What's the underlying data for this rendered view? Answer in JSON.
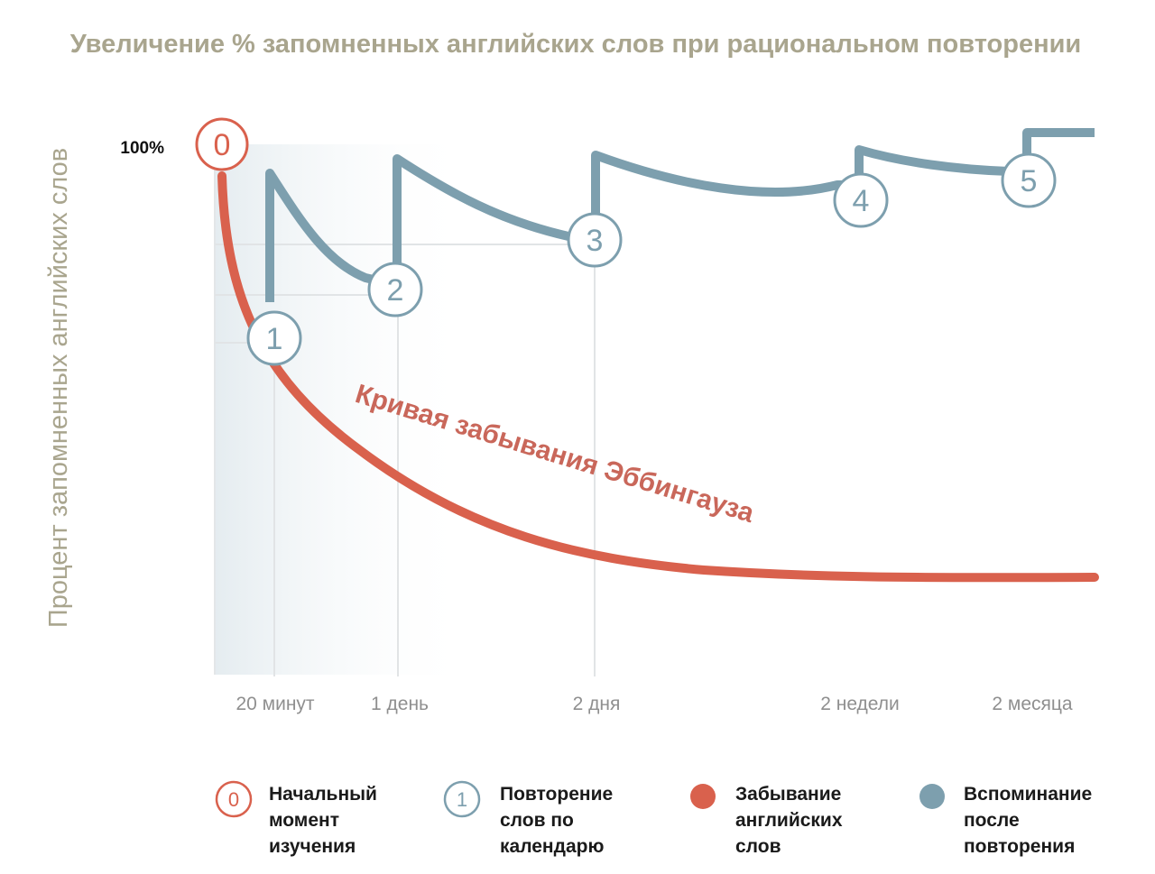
{
  "chart_data": {
    "type": "line",
    "title": "Увеличение % запомненных английских слов при рациональном повторении",
    "ylabel": "Процент запомненных английских слов",
    "y_tick_label": "100%",
    "x_tick_labels": [
      "20 минут",
      "1 день",
      "2 дня",
      "2 недели",
      "2 месяца"
    ],
    "curve_annotation": "Кривая забывания Эббингауза",
    "series": [
      {
        "role": "forgetting",
        "color": "#d9614d",
        "points": [
          [
            0,
            100
          ],
          [
            0.3,
            62
          ],
          [
            0.6,
            48
          ],
          [
            1,
            38
          ],
          [
            1.5,
            30
          ],
          [
            2,
            24
          ],
          [
            2.5,
            21
          ],
          [
            3,
            20
          ],
          [
            3.5,
            19.5
          ],
          [
            4.2,
            19.5
          ]
        ]
      },
      {
        "role": "recall",
        "color": "#7d9fae",
        "segments": [
          {
            "start": [
              0.33,
              70
            ],
            "rise_to": [
              0.33,
              95
            ],
            "decay_to": [
              0.85,
              76
            ]
          },
          {
            "start": [
              0.85,
              76
            ],
            "rise_to": [
              0.85,
              97
            ],
            "decay_to": [
              1.6,
              84
            ]
          },
          {
            "start": [
              1.6,
              84
            ],
            "rise_to": [
              1.6,
              98
            ],
            "decay_to": [
              2.95,
              92
            ]
          },
          {
            "start": [
              2.95,
              92
            ],
            "rise_to": [
              2.95,
              99
            ],
            "decay_to": [
              3.5,
              95
            ]
          },
          {
            "start": [
              3.5,
              95
            ],
            "rise_to": [
              3.5,
              100
            ],
            "decay_to": [
              3.8,
              100
            ]
          }
        ]
      }
    ],
    "markers": [
      {
        "label": "0",
        "kind": "start",
        "x": 0,
        "y": 100
      },
      {
        "label": "1",
        "kind": "repetition",
        "x": 0.27,
        "y": 65
      },
      {
        "label": "2",
        "kind": "repetition",
        "x": 0.84,
        "y": 74
      },
      {
        "label": "3",
        "kind": "repetition",
        "x": 1.7,
        "y": 83
      },
      {
        "label": "4",
        "kind": "repetition",
        "x": 2.85,
        "y": 91
      },
      {
        "label": "5",
        "kind": "repetition",
        "x": 3.6,
        "y": 95
      }
    ],
    "grid": true
  },
  "legend": {
    "items": [
      {
        "symbol": "0",
        "lines": [
          "Начальный",
          "момент",
          "изучения"
        ],
        "color": "#d9614d",
        "style": "outline"
      },
      {
        "symbol": "1",
        "lines": [
          "Повторение",
          "слов по",
          "календарю"
        ],
        "color": "#7d9fae",
        "style": "outline"
      },
      {
        "symbol": "",
        "lines": [
          "Забывание",
          "английских",
          "слов"
        ],
        "color": "#d9614d",
        "style": "filled"
      },
      {
        "symbol": "",
        "lines": [
          "Вспоминание",
          "после",
          "повторения"
        ],
        "color": "#7d9fae",
        "style": "filled"
      }
    ]
  }
}
